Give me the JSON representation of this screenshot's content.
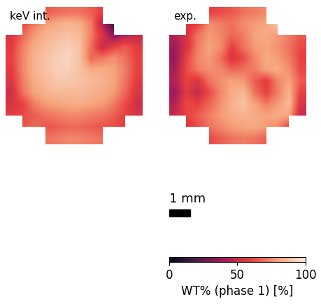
{
  "chart_data": [
    {
      "type": "heatmap",
      "title": "keV int.",
      "tick_labels": false,
      "extent": [
        0,
        6.5,
        0,
        6.5
      ],
      "cells": [
        [
          null,
          null,
          null,
          65,
          68,
          70,
          70,
          66,
          60,
          null,
          null,
          null
        ],
        [
          null,
          60,
          72,
          78,
          82,
          84,
          82,
          72,
          45,
          15,
          null,
          null
        ],
        [
          55,
          68,
          78,
          84,
          86,
          88,
          86,
          72,
          55,
          35,
          45,
          50
        ],
        [
          58,
          72,
          82,
          86,
          90,
          92,
          88,
          70,
          50,
          60,
          65,
          58
        ],
        [
          60,
          74,
          84,
          88,
          92,
          94,
          88,
          68,
          72,
          76,
          70,
          60
        ],
        [
          58,
          74,
          84,
          88,
          92,
          92,
          88,
          82,
          82,
          80,
          72,
          60
        ],
        [
          56,
          72,
          82,
          86,
          90,
          90,
          88,
          86,
          84,
          80,
          70,
          58
        ],
        [
          52,
          70,
          80,
          84,
          86,
          86,
          86,
          84,
          82,
          78,
          68,
          55
        ],
        [
          55,
          60,
          72,
          78,
          80,
          82,
          82,
          80,
          78,
          72,
          62,
          52
        ],
        [
          58,
          62,
          66,
          70,
          72,
          74,
          74,
          72,
          70,
          66,
          60,
          55
        ],
        [
          null,
          64,
          68,
          64,
          66,
          68,
          68,
          66,
          64,
          62,
          58,
          null
        ],
        [
          null,
          null,
          null,
          70,
          72,
          74,
          74,
          72,
          70,
          null,
          null,
          null
        ]
      ]
    },
    {
      "type": "heatmap",
      "title": "exp.",
      "tick_labels": false,
      "extent": [
        0,
        6.5,
        0,
        6.5
      ],
      "cells": [
        [
          null,
          null,
          null,
          60,
          62,
          65,
          70,
          72,
          75,
          null,
          null,
          null
        ],
        [
          null,
          55,
          60,
          75,
          72,
          70,
          75,
          78,
          80,
          90,
          null,
          null
        ],
        [
          45,
          55,
          70,
          78,
          74,
          68,
          72,
          80,
          82,
          78,
          72,
          65
        ],
        [
          40,
          55,
          72,
          80,
          76,
          60,
          70,
          78,
          80,
          76,
          70,
          62
        ],
        [
          38,
          60,
          74,
          78,
          70,
          55,
          62,
          74,
          82,
          78,
          72,
          60
        ],
        [
          42,
          62,
          72,
          76,
          74,
          68,
          70,
          72,
          80,
          82,
          76,
          62
        ],
        [
          45,
          60,
          55,
          70,
          76,
          80,
          78,
          66,
          58,
          74,
          80,
          65
        ],
        [
          40,
          58,
          50,
          62,
          74,
          82,
          86,
          70,
          60,
          72,
          84,
          60
        ],
        [
          45,
          62,
          60,
          68,
          76,
          84,
          88,
          80,
          72,
          78,
          86,
          55
        ],
        [
          50,
          60,
          66,
          72,
          78,
          82,
          84,
          82,
          80,
          82,
          80,
          50
        ],
        [
          null,
          55,
          62,
          70,
          74,
          78,
          80,
          82,
          78,
          74,
          60,
          null
        ],
        [
          null,
          null,
          null,
          62,
          66,
          70,
          72,
          70,
          66,
          null,
          null,
          null
        ]
      ]
    }
  ],
  "colorbar": {
    "label": "WT% (phase 1) [%]",
    "range": [
      0,
      100
    ],
    "ticks": [
      0,
      50,
      100
    ]
  },
  "scale_bar": {
    "label": "1 mm",
    "length": 1
  }
}
